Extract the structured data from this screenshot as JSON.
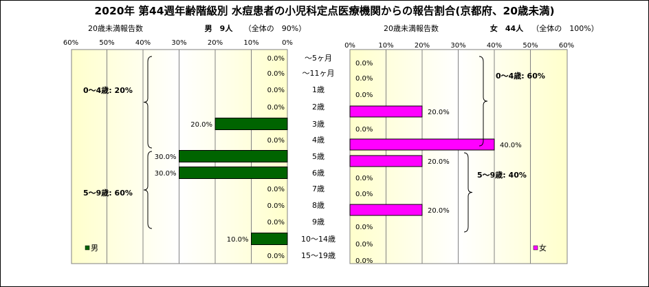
{
  "title": "2020年 第44週年齢階級別 水痘患者の小児科定点医療機関からの報告割合(京都府、20歳未満)",
  "left_caption": "20歳未満報告数",
  "right_caption": "20歳未満報告数",
  "male_header": "男　9人",
  "male_share": "（全体の　90%）",
  "female_header": "女　44人",
  "female_share": "（全体の　100%）",
  "colors": {
    "male": "#006400",
    "female": "#ff00ff",
    "plot_bg_edge": "#ffffcc",
    "plot_bg_center": "#ffffff"
  },
  "chart_data": [
    {
      "type": "bar",
      "orientation": "horizontal",
      "direction": "right-to-left",
      "categories": [
        "～5ヶ月",
        "～11ヶ月",
        "1歳",
        "2歳",
        "3歳",
        "4歳",
        "5歳",
        "6歳",
        "7歳",
        "8歳",
        "9歳",
        "10～14歳",
        "15～19歳"
      ],
      "series": [
        {
          "name": "男",
          "values": [
            0,
            0,
            0,
            0,
            20,
            0,
            30,
            30,
            0,
            0,
            0,
            10,
            0
          ]
        }
      ],
      "data_labels": [
        "0.0%",
        "0.0%",
        "0.0%",
        "0.0%",
        "20.0%",
        "0.0%",
        "30.0%",
        "30.0%",
        "0.0%",
        "0.0%",
        "0.0%",
        "10.0%",
        "0.0%"
      ],
      "xlim": [
        0,
        60
      ],
      "xticks": [
        "0%",
        "10%",
        "20%",
        "30%",
        "40%",
        "50%",
        "60%"
      ],
      "legend": "bottom-left",
      "annotations": [
        {
          "text": "0～4歳: 20%",
          "from": 0,
          "to": 5
        },
        {
          "text": "5～9歳: 60%",
          "from": 6,
          "to": 10
        }
      ]
    },
    {
      "type": "bar",
      "orientation": "horizontal",
      "direction": "left-to-right",
      "categories": [
        "～5ヶ月",
        "～11ヶ月",
        "1歳",
        "2歳",
        "3歳",
        "4歳",
        "5歳",
        "6歳",
        "7歳",
        "8歳",
        "9歳",
        "10～14歳",
        "15～19歳"
      ],
      "series": [
        {
          "name": "女",
          "values": [
            0,
            0,
            0,
            20,
            0,
            40,
            20,
            0,
            0,
            20,
            0,
            0,
            0
          ]
        }
      ],
      "data_labels": [
        "0.0%",
        "0.0%",
        "0.0%",
        "20.0%",
        "0.0%",
        "40.0%",
        "20.0%",
        "0.0%",
        "0.0%",
        "20.0%",
        "0.0%",
        "0.0%",
        "0.0%"
      ],
      "xlim": [
        0,
        60
      ],
      "xticks": [
        "0%",
        "10%",
        "20%",
        "30%",
        "40%",
        "50%",
        "60%"
      ],
      "legend": "bottom-right",
      "annotations": [
        {
          "text": "0～4歳: 60%",
          "from": 0,
          "to": 5
        },
        {
          "text": "5～9歳: 40%",
          "from": 6,
          "to": 10
        }
      ]
    }
  ]
}
